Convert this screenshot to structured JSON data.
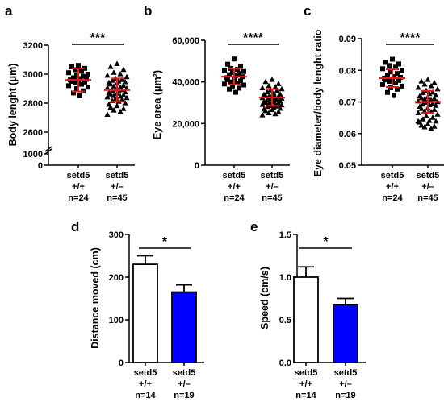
{
  "colors": {
    "axis": "#000000",
    "error": "#e31a1c",
    "ko_bar": "#0000ff",
    "wt_bar": "#ffffff"
  },
  "chart_data": [
    {
      "type": "scatter",
      "panel": "a",
      "ylabel": "Body lenght (μm)",
      "ylim": [
        0,
        3200
      ],
      "axis_break": [
        1000,
        2500
      ],
      "y_ticks": [
        "0",
        "1000",
        "2600",
        "2800",
        "3000",
        "3200"
      ],
      "categories": [
        {
          "lines": [
            "setd5",
            "+/+",
            "n=24"
          ],
          "marker": "square",
          "mean": 2960,
          "sd": 80,
          "points": [
            3060,
            3050,
            3040,
            3030,
            3020,
            3010,
            3000,
            2990,
            2985,
            2975,
            2970,
            2965,
            2960,
            2955,
            2950,
            2945,
            2940,
            2930,
            2920,
            2910,
            2900,
            2885,
            2870,
            2850
          ]
        },
        {
          "lines": [
            "setd5",
            "+/–",
            "n=45"
          ],
          "marker": "triangle",
          "mean": 2890,
          "sd": 80,
          "points": [
            3070,
            3050,
            3030,
            3010,
            3000,
            2990,
            2980,
            2970,
            2960,
            2955,
            2950,
            2945,
            2940,
            2935,
            2930,
            2920,
            2915,
            2910,
            2905,
            2900,
            2895,
            2890,
            2885,
            2880,
            2875,
            2870,
            2865,
            2860,
            2855,
            2850,
            2845,
            2840,
            2835,
            2830,
            2820,
            2815,
            2810,
            2800,
            2790,
            2780,
            2770,
            2760,
            2750,
            2740,
            2720
          ]
        }
      ],
      "significance": "***"
    },
    {
      "type": "scatter",
      "panel": "b",
      "ylabel": "Eye area (μm²)",
      "ylim": [
        0,
        60000
      ],
      "y_ticks": [
        "0",
        "20,000",
        "40,000",
        "60,000"
      ],
      "categories": [
        {
          "lines": [
            "setd5",
            "+/+",
            "n=24"
          ],
          "marker": "square",
          "mean": 42500,
          "sd": 3800,
          "points": [
            51000,
            48500,
            47500,
            46500,
            46000,
            45500,
            45000,
            44500,
            44000,
            43500,
            43000,
            42500,
            42000,
            41500,
            41000,
            40500,
            40000,
            39500,
            39000,
            38500,
            38000,
            37000,
            36500,
            35000
          ]
        },
        {
          "lines": [
            "setd5",
            "+/–",
            "n=45"
          ],
          "marker": "triangle",
          "mean": 32500,
          "sd": 4000,
          "points": [
            41000,
            40000,
            39000,
            38000,
            37500,
            37000,
            36500,
            36000,
            35500,
            35000,
            34500,
            34000,
            33800,
            33500,
            33200,
            33000,
            32800,
            32500,
            32300,
            32000,
            31800,
            31500,
            31300,
            31000,
            30800,
            30500,
            30300,
            30000,
            29800,
            29500,
            29300,
            29000,
            28800,
            28500,
            28200,
            28000,
            27600,
            27200,
            26800,
            26500,
            26000,
            25500,
            25000,
            24500,
            24000
          ]
        }
      ],
      "significance": "****"
    },
    {
      "type": "scatter",
      "panel": "c",
      "ylabel": "Eye diameter/body lenght ratio",
      "ylim": [
        0.05,
        0.09
      ],
      "y_ticks": [
        "0.05",
        "0.06",
        "0.07",
        "0.08",
        "0.09"
      ],
      "categories": [
        {
          "lines": [
            "setd5",
            "+/+",
            "n=24"
          ],
          "marker": "square",
          "mean": 0.0775,
          "sd": 0.0028,
          "points": [
            0.0835,
            0.0825,
            0.082,
            0.0815,
            0.081,
            0.0805,
            0.08,
            0.0795,
            0.079,
            0.0785,
            0.078,
            0.0778,
            0.0775,
            0.0772,
            0.077,
            0.0768,
            0.0765,
            0.076,
            0.0755,
            0.075,
            0.0745,
            0.074,
            0.073,
            0.072
          ]
        },
        {
          "lines": [
            "setd5",
            "+/–",
            "n=45"
          ],
          "marker": "triangle",
          "mean": 0.07,
          "sd": 0.0035,
          "points": [
            0.077,
            0.0765,
            0.076,
            0.0755,
            0.075,
            0.0745,
            0.074,
            0.0735,
            0.073,
            0.0728,
            0.0725,
            0.072,
            0.0718,
            0.0715,
            0.0712,
            0.071,
            0.0708,
            0.0705,
            0.0702,
            0.07,
            0.0698,
            0.0695,
            0.0692,
            0.069,
            0.0688,
            0.0685,
            0.068,
            0.0678,
            0.0675,
            0.067,
            0.0668,
            0.0665,
            0.066,
            0.0655,
            0.065,
            0.0645,
            0.064,
            0.0638,
            0.0635,
            0.063,
            0.0625,
            0.0622,
            0.062,
            0.0615,
            0.0638
          ]
        }
      ],
      "significance": "****"
    },
    {
      "type": "bar",
      "panel": "d",
      "ylabel": "Distance moved (cm)",
      "ylim": [
        0,
        300
      ],
      "y_ticks": [
        "0",
        "100",
        "200",
        "300"
      ],
      "categories": [
        {
          "lines": [
            "setd5",
            "+/+",
            "n=14"
          ],
          "value": 230,
          "sem": 20,
          "fill": "#ffffff"
        },
        {
          "lines": [
            "setd5",
            "+/–",
            "n=19"
          ],
          "value": 165,
          "sem": 17,
          "fill": "#0000ff"
        }
      ],
      "significance": "*"
    },
    {
      "type": "bar",
      "panel": "e",
      "ylabel": "Speed (cm/s)",
      "ylim": [
        0,
        1.5
      ],
      "y_ticks": [
        "0.0",
        "0.5",
        "1.0",
        "1.5"
      ],
      "categories": [
        {
          "lines": [
            "setd5",
            "+/+",
            "n=14"
          ],
          "value": 1.0,
          "sem": 0.12,
          "fill": "#ffffff"
        },
        {
          "lines": [
            "setd5",
            "+/–",
            "n=19"
          ],
          "value": 0.68,
          "sem": 0.07,
          "fill": "#0000ff"
        }
      ],
      "significance": "*"
    }
  ]
}
